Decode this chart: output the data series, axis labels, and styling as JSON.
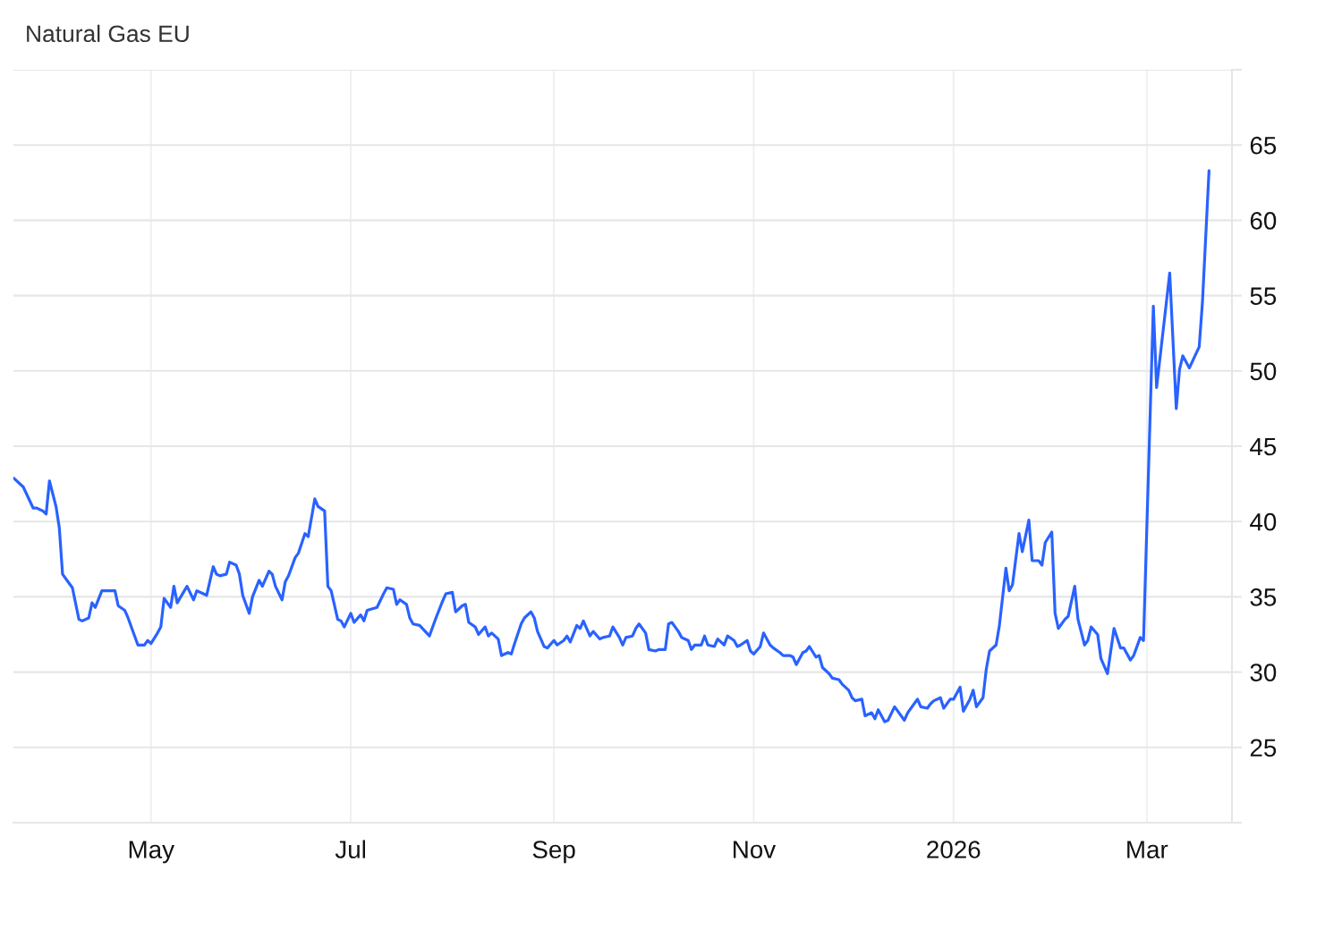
{
  "chart_data": {
    "type": "line",
    "title": "Natural Gas EU",
    "x": [
      "2025-03-20",
      "2025-03-23",
      "2025-03-26",
      "2025-03-27",
      "2025-03-29",
      "2025-03-30",
      "2025-03-31",
      "2025-04-02",
      "2025-04-03",
      "2025-04-04",
      "2025-04-06",
      "2025-04-07",
      "2025-04-09",
      "2025-04-10",
      "2025-04-12",
      "2025-04-13",
      "2025-04-14",
      "2025-04-16",
      "2025-04-20",
      "2025-04-21",
      "2025-04-23",
      "2025-04-24",
      "2025-04-26",
      "2025-04-27",
      "2025-04-29",
      "2025-04-30",
      "2025-05-01",
      "2025-05-03",
      "2025-05-04",
      "2025-05-05",
      "2025-05-07",
      "2025-05-08",
      "2025-05-09",
      "2025-05-12",
      "2025-05-14",
      "2025-05-15",
      "2025-05-17",
      "2025-05-18",
      "2025-05-20",
      "2025-05-21",
      "2025-05-22",
      "2025-05-24",
      "2025-05-25",
      "2025-05-27",
      "2025-05-28",
      "2025-05-29",
      "2025-05-31",
      "2025-06-01",
      "2025-06-03",
      "2025-06-04",
      "2025-06-06",
      "2025-06-07",
      "2025-06-08",
      "2025-06-10",
      "2025-06-11",
      "2025-06-12",
      "2025-06-14",
      "2025-06-15",
      "2025-06-17",
      "2025-06-18",
      "2025-06-20",
      "2025-06-21",
      "2025-06-23",
      "2025-06-24",
      "2025-06-25",
      "2025-06-27",
      "2025-06-28",
      "2025-06-29",
      "2025-07-01",
      "2025-07-02",
      "2025-07-04",
      "2025-07-05",
      "2025-07-06",
      "2025-07-09",
      "2025-07-11",
      "2025-07-12",
      "2025-07-14",
      "2025-07-15",
      "2025-07-16",
      "2025-07-18",
      "2025-07-19",
      "2025-07-20",
      "2025-07-22",
      "2025-07-25",
      "2025-07-26",
      "2025-07-27",
      "2025-07-29",
      "2025-07-30",
      "2025-08-01",
      "2025-08-02",
      "2025-08-04",
      "2025-08-05",
      "2025-08-06",
      "2025-08-08",
      "2025-08-09",
      "2025-08-11",
      "2025-08-12",
      "2025-08-13",
      "2025-08-15",
      "2025-08-16",
      "2025-08-18",
      "2025-08-19",
      "2025-08-20",
      "2025-08-22",
      "2025-08-23",
      "2025-08-25",
      "2025-08-26",
      "2025-08-27",
      "2025-08-29",
      "2025-08-30",
      "2025-09-01",
      "2025-09-02",
      "2025-09-04",
      "2025-09-05",
      "2025-09-06",
      "2025-09-08",
      "2025-09-09",
      "2025-09-10",
      "2025-09-12",
      "2025-09-13",
      "2025-09-15",
      "2025-09-16",
      "2025-09-18",
      "2025-09-19",
      "2025-09-21",
      "2025-09-22",
      "2025-09-23",
      "2025-09-25",
      "2025-09-26",
      "2025-09-27",
      "2025-09-29",
      "2025-09-30",
      "2025-10-02",
      "2025-10-03",
      "2025-10-05",
      "2025-10-06",
      "2025-10-07",
      "2025-10-09",
      "2025-10-10",
      "2025-10-12",
      "2025-10-13",
      "2025-10-14",
      "2025-10-16",
      "2025-10-17",
      "2025-10-18",
      "2025-10-20",
      "2025-10-21",
      "2025-10-23",
      "2025-10-24",
      "2025-10-26",
      "2025-10-27",
      "2025-10-28",
      "2025-10-30",
      "2025-10-31",
      "2025-11-01",
      "2025-11-03",
      "2025-11-04",
      "2025-11-06",
      "2025-11-07",
      "2025-11-09",
      "2025-11-10",
      "2025-11-12",
      "2025-11-13",
      "2025-11-14",
      "2025-11-16",
      "2025-11-17",
      "2025-11-18",
      "2025-11-20",
      "2025-11-21",
      "2025-11-22",
      "2025-11-24",
      "2025-11-25",
      "2025-11-27",
      "2025-11-28",
      "2025-11-30",
      "2025-12-01",
      "2025-12-02",
      "2025-12-04",
      "2025-12-05",
      "2025-12-07",
      "2025-12-08",
      "2025-12-09",
      "2025-12-11",
      "2025-12-12",
      "2025-12-14",
      "2025-12-15",
      "2025-12-17",
      "2025-12-18",
      "2025-12-19",
      "2025-12-21",
      "2025-12-22",
      "2025-12-24",
      "2025-12-25",
      "2025-12-26",
      "2025-12-28",
      "2025-12-29",
      "2025-12-31",
      "2026-01-01",
      "2026-01-03",
      "2026-01-04",
      "2026-01-06",
      "2026-01-07",
      "2026-01-08",
      "2026-01-10",
      "2026-01-11",
      "2026-01-12",
      "2026-01-14",
      "2026-01-15",
      "2026-01-17",
      "2026-01-18",
      "2026-01-19",
      "2026-01-21",
      "2026-01-22",
      "2026-01-24",
      "2026-01-25",
      "2026-01-27",
      "2026-01-28",
      "2026-01-29",
      "2026-01-31",
      "2026-02-01",
      "2026-02-02",
      "2026-02-04",
      "2026-02-05",
      "2026-02-07",
      "2026-02-08",
      "2026-02-10",
      "2026-02-11",
      "2026-02-12",
      "2026-02-14",
      "2026-02-15",
      "2026-02-17",
      "2026-02-18",
      "2026-02-19",
      "2026-02-21",
      "2026-02-22",
      "2026-02-24",
      "2026-02-25",
      "2026-02-27",
      "2026-02-28",
      "2026-03-03",
      "2026-03-04",
      "2026-03-08",
      "2026-03-10",
      "2026-03-11",
      "2026-03-12",
      "2026-03-14",
      "2026-03-17",
      "2026-03-18",
      "2026-03-20"
    ],
    "series": [
      {
        "color": "#2962ff",
        "values": [
          42.9,
          42.3,
          40.9,
          40.9,
          40.7,
          40.5,
          42.7,
          41.0,
          39.6,
          36.5,
          35.9,
          35.6,
          33.5,
          33.4,
          33.6,
          34.6,
          34.3,
          35.4,
          35.4,
          34.4,
          34.1,
          33.6,
          32.4,
          31.8,
          31.8,
          32.1,
          31.9,
          32.6,
          33.0,
          34.9,
          34.3,
          35.7,
          34.6,
          35.7,
          34.8,
          35.4,
          35.2,
          35.1,
          37.0,
          36.5,
          36.4,
          36.5,
          37.3,
          37.1,
          36.5,
          35.1,
          33.9,
          35.0,
          36.1,
          35.7,
          36.7,
          36.5,
          35.7,
          34.8,
          36.0,
          36.4,
          37.6,
          37.9,
          39.2,
          39.0,
          41.5,
          41.0,
          40.7,
          35.7,
          35.4,
          33.5,
          33.4,
          33.0,
          33.9,
          33.3,
          33.8,
          33.4,
          34.1,
          34.3,
          35.2,
          35.6,
          35.5,
          34.5,
          34.8,
          34.5,
          33.6,
          33.2,
          33.1,
          32.4,
          33.0,
          33.6,
          34.7,
          35.2,
          35.3,
          34.0,
          34.4,
          34.5,
          33.3,
          33.0,
          32.5,
          33.0,
          32.4,
          32.6,
          32.2,
          31.1,
          31.3,
          31.2,
          31.9,
          33.2,
          33.6,
          34.0,
          33.6,
          32.7,
          31.7,
          31.6,
          32.1,
          31.8,
          32.1,
          32.4,
          32.0,
          33.1,
          32.9,
          33.4,
          32.4,
          32.7,
          32.2,
          32.3,
          32.4,
          33.0,
          32.3,
          31.8,
          32.3,
          32.4,
          32.9,
          33.2,
          32.6,
          31.5,
          31.4,
          31.5,
          31.5,
          33.2,
          33.3,
          32.7,
          32.3,
          32.1,
          31.5,
          31.8,
          31.8,
          32.4,
          31.8,
          31.7,
          32.2,
          31.8,
          32.4,
          32.1,
          31.7,
          31.8,
          32.1,
          31.4,
          31.2,
          31.7,
          32.6,
          31.8,
          31.6,
          31.3,
          31.1,
          31.1,
          31.0,
          30.5,
          31.3,
          31.4,
          31.7,
          31.0,
          31.1,
          30.3,
          29.9,
          29.6,
          29.5,
          29.2,
          28.8,
          28.3,
          28.1,
          28.2,
          27.1,
          27.3,
          26.9,
          27.5,
          26.7,
          26.8,
          27.7,
          27.4,
          26.8,
          27.3,
          27.6,
          28.2,
          27.7,
          27.6,
          27.9,
          28.1,
          28.3,
          27.6,
          28.2,
          28.2,
          29.0,
          27.4,
          28.2,
          28.8,
          27.7,
          28.3,
          30.2,
          31.4,
          31.8,
          33.1,
          36.9,
          35.4,
          35.8,
          39.2,
          38.0,
          40.1,
          37.4,
          37.4,
          37.1,
          38.6,
          39.3,
          33.9,
          32.9,
          33.5,
          33.7,
          35.7,
          33.5,
          31.8,
          32.1,
          33.0,
          32.5,
          30.9,
          29.9,
          31.4,
          32.9,
          31.6,
          31.6,
          30.8,
          31.1,
          32.3,
          32.1,
          54.3,
          48.9,
          56.5,
          47.5,
          50.1,
          51.0,
          50.2,
          51.6,
          54.6,
          63.3
        ]
      }
    ],
    "xlim": [
      "2025-03-20",
      "2026-03-27"
    ],
    "xticks": [
      {
        "value": "2025-05-01",
        "label": "May"
      },
      {
        "value": "2025-07-01",
        "label": "Jul"
      },
      {
        "value": "2025-09-01",
        "label": "Sep"
      },
      {
        "value": "2025-11-01",
        "label": "Nov"
      },
      {
        "value": "2026-01-01",
        "label": "2026"
      },
      {
        "value": "2026-03-01",
        "label": "Mar"
      }
    ],
    "ylim": [
      20,
      70
    ],
    "yticks": [
      {
        "value": 20,
        "label": null
      },
      25,
      30,
      35,
      40,
      45,
      50,
      55,
      60,
      65,
      {
        "value": 70,
        "label": null
      }
    ],
    "grid": true
  }
}
